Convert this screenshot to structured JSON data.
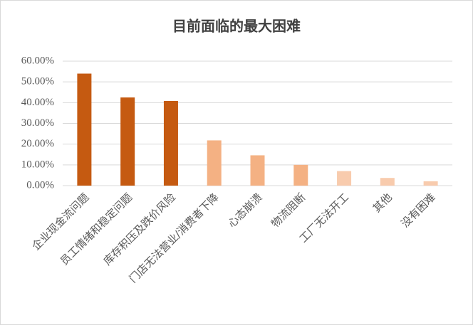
{
  "chart_data": {
    "type": "bar",
    "title": "目前面临的最大困难",
    "categories": [
      "企业现金流问题",
      "员工情绪和稳定问题",
      "库存积压及跌价风险",
      "门店无法营业/消费者下降",
      "心态崩溃",
      "物流阻断",
      "工厂无法开工",
      "其他",
      "没有困难"
    ],
    "values": [
      54.0,
      42.5,
      40.8,
      21.8,
      14.6,
      10.0,
      7.0,
      3.7,
      2.1
    ],
    "colors": [
      "#c55a11",
      "#c55a11",
      "#c55a11",
      "#f4b183",
      "#f4b183",
      "#f4b183",
      "#f8cbad",
      "#f8cbad",
      "#f8cbad"
    ],
    "ylim": [
      0,
      60
    ],
    "yticks": [
      {
        "value": 0,
        "label": "0.00%"
      },
      {
        "value": 10,
        "label": "10.00%"
      },
      {
        "value": 20,
        "label": "20.00%"
      },
      {
        "value": 30,
        "label": "30.00%"
      },
      {
        "value": 40,
        "label": "40.00%"
      },
      {
        "value": 50,
        "label": "50.00%"
      },
      {
        "value": 60,
        "label": "60.00%"
      }
    ],
    "grid": true
  }
}
